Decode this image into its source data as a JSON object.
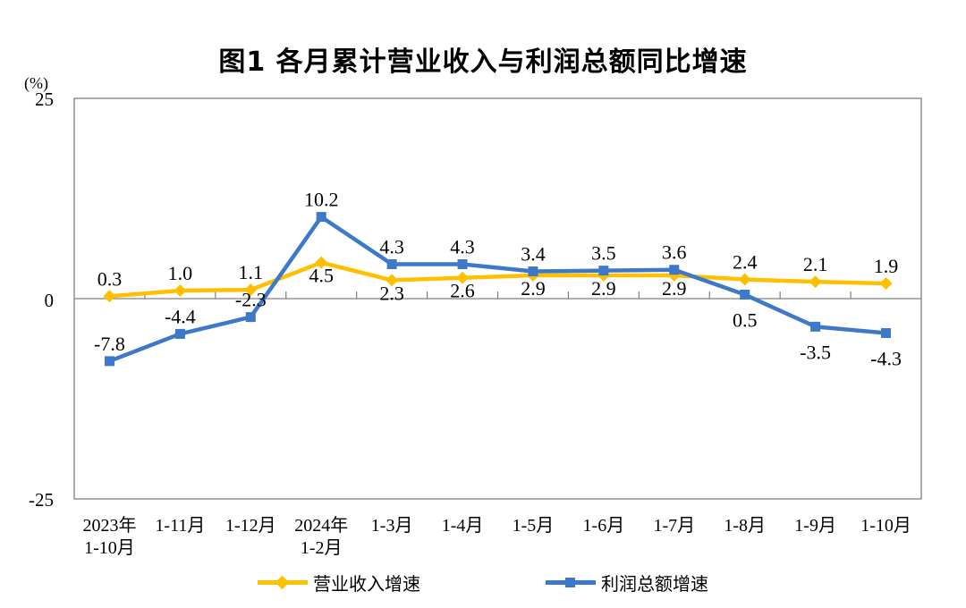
{
  "chart_data": {
    "type": "line",
    "title": "图1  各月累计营业收入与利润总额同比增速",
    "ylabel": "(%)",
    "ylim": [
      -25,
      25
    ],
    "y_ticks": [
      25,
      0,
      -25
    ],
    "y_tick_labels": [
      "25",
      "0",
      "-25"
    ],
    "grid": false,
    "legend_position": "bottom",
    "axis_color": "#808080",
    "text_color": "#000000",
    "categories": [
      [
        "2023年",
        "1-10月"
      ],
      [
        "1-11月"
      ],
      [
        "1-12月"
      ],
      [
        "2024年",
        "1-2月"
      ],
      [
        "1-3月"
      ],
      [
        "1-4月"
      ],
      [
        "1-5月"
      ],
      [
        "1-6月"
      ],
      [
        "1-7月"
      ],
      [
        "1-8月"
      ],
      [
        "1-9月"
      ],
      [
        "1-10月"
      ]
    ],
    "series": [
      {
        "name": "营业收入增速",
        "color": "#FFC000",
        "marker": "diamond",
        "values": [
          0.3,
          1.0,
          1.1,
          4.5,
          2.3,
          2.6,
          2.9,
          2.9,
          2.9,
          2.4,
          2.1,
          1.9
        ],
        "value_labels": [
          "0.3",
          "1.0",
          "1.1",
          "4.5",
          "2.3",
          "2.6",
          "2.9",
          "2.9",
          "2.9",
          "2.4",
          "2.1",
          "1.9"
        ],
        "label_positions": [
          "above",
          "above",
          "above",
          "below",
          "below",
          "below",
          "below",
          "below",
          "below",
          "above",
          "above",
          "above"
        ]
      },
      {
        "name": "利润总额增速",
        "color": "#3E78C9",
        "marker": "square",
        "values": [
          -7.8,
          -4.4,
          -2.3,
          10.2,
          4.3,
          4.3,
          3.4,
          3.5,
          3.6,
          0.5,
          -3.5,
          -4.3
        ],
        "value_labels": [
          "-7.8",
          "-4.4",
          "-2.3",
          "10.2",
          "4.3",
          "4.3",
          "3.4",
          "3.5",
          "3.6",
          "0.5",
          "-3.5",
          "-4.3"
        ],
        "label_positions": [
          "above",
          "above",
          "above",
          "above",
          "above",
          "above",
          "above",
          "above",
          "above",
          "below",
          "below",
          "below"
        ]
      }
    ]
  }
}
